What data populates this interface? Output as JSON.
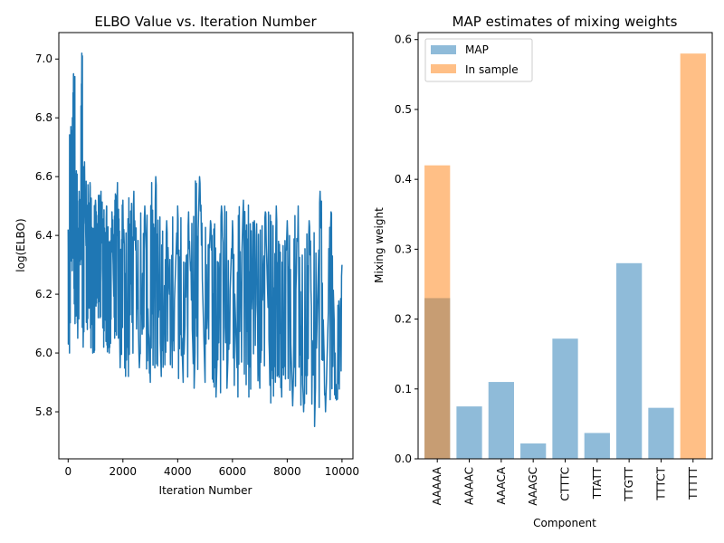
{
  "chart_data": [
    {
      "type": "line",
      "title": "ELBO Value vs. Iteration Number",
      "xlabel": "Iteration Number",
      "ylabel": "log(ELBO)",
      "xlim": [
        -340,
        10400
      ],
      "ylim": [
        5.64,
        7.09
      ],
      "xticks": [
        0,
        2000,
        4000,
        6000,
        8000,
        10000
      ],
      "xtick_labels": [
        "0",
        "2000",
        "4000",
        "6000",
        "8000",
        "10000"
      ],
      "yticks": [
        5.8,
        6.0,
        6.2,
        6.4,
        6.6,
        6.8,
        7.0
      ],
      "ytick_labels": [
        "5.8",
        "6.0",
        "6.2",
        "6.4",
        "6.6",
        "6.8",
        "7.0"
      ],
      "grid": false,
      "color": "#1f77b4",
      "series": [
        {
          "x": [
            0,
            50,
            100,
            150,
            200,
            250,
            300,
            350,
            400,
            450,
            500,
            550,
            600,
            700,
            800,
            900,
            1000,
            1100,
            1200,
            1300,
            1400,
            1500,
            1600,
            1700,
            1800,
            1900,
            2000,
            2200,
            2400,
            2600,
            2800,
            3000,
            3200,
            3400,
            3600,
            3800,
            4000,
            4200,
            4400,
            4600,
            4800,
            5000,
            5200,
            5400,
            5600,
            5800,
            6000,
            6200,
            6400,
            6600,
            6800,
            7000,
            7200,
            7400,
            7600,
            7800,
            8000,
            8200,
            8400,
            8600,
            8800,
            9000,
            9200,
            9400,
            9600,
            9800,
            10000
          ],
          "y": [
            6.42,
            6.0,
            6.77,
            6.28,
            6.95,
            6.1,
            6.62,
            6.05,
            6.55,
            6.3,
            7.02,
            6.02,
            6.65,
            6.08,
            6.58,
            6.0,
            6.52,
            6.12,
            6.55,
            6.02,
            6.5,
            6.0,
            6.48,
            6.05,
            6.58,
            5.95,
            6.52,
            5.92,
            6.55,
            5.95,
            6.5,
            5.9,
            6.6,
            5.92,
            6.45,
            5.95,
            6.5,
            5.9,
            6.48,
            5.88,
            6.6,
            5.9,
            6.45,
            5.85,
            6.5,
            5.88,
            6.45,
            5.85,
            6.52,
            5.85,
            6.45,
            5.88,
            6.48,
            5.83,
            6.5,
            5.85,
            6.45,
            5.82,
            6.5,
            5.8,
            6.45,
            5.75,
            6.55,
            5.8,
            6.48,
            5.84,
            6.3
          ]
        }
      ]
    },
    {
      "type": "bar",
      "title": "MAP estimates of mixing weights",
      "xlabel": "Component",
      "ylabel": "Mixing weight",
      "categories": [
        "AAAAA",
        "AAAAC",
        "AAACA",
        "AAAGC",
        "CTTTC",
        "TTATT",
        "TTGTT",
        "TTTCT",
        "TTTTT"
      ],
      "ylim": [
        0,
        0.61
      ],
      "yticks": [
        0.0,
        0.1,
        0.2,
        0.3,
        0.4,
        0.5,
        0.6
      ],
      "ytick_labels": [
        "0.0",
        "0.1",
        "0.2",
        "0.3",
        "0.4",
        "0.5",
        "0.6"
      ],
      "grid": false,
      "legend_position": "top-left",
      "series": [
        {
          "name": "MAP",
          "color": "#1f77b4",
          "alpha": 0.5,
          "values": [
            0.23,
            0.075,
            0.11,
            0.022,
            0.172,
            0.037,
            0.28,
            0.073,
            0.0
          ]
        },
        {
          "name": "In sample",
          "color": "#ff7f0e",
          "alpha": 0.5,
          "values": [
            0.42,
            0.0,
            0.0,
            0.0,
            0.0,
            0.0,
            0.0,
            0.0,
            0.58
          ]
        }
      ]
    }
  ]
}
